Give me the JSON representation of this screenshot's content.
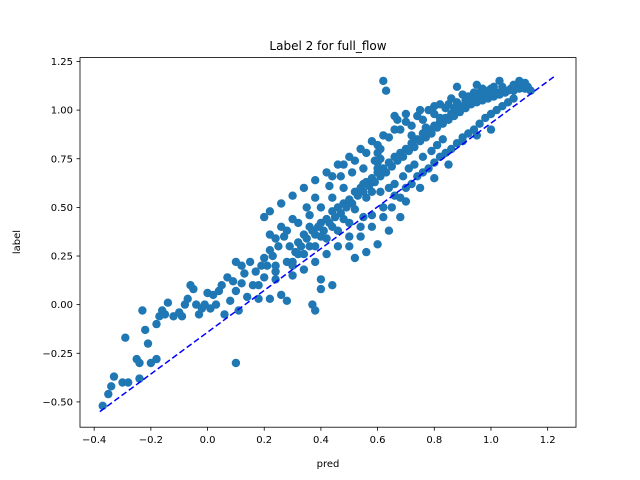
{
  "chart_data": {
    "type": "scatter",
    "title": "Label 2 for full_flow",
    "xlabel": "pred",
    "ylabel": "label",
    "xlim": [
      -0.45,
      1.3
    ],
    "ylim": [
      -0.63,
      1.27
    ],
    "xticks": [
      -0.4,
      -0.2,
      0.0,
      0.2,
      0.4,
      0.6,
      0.8,
      1.0,
      1.2
    ],
    "xtick_labels": [
      "−0.4",
      "−0.2",
      "0.0",
      "0.2",
      "0.4",
      "0.6",
      "0.8",
      "1.0",
      "1.2"
    ],
    "yticks": [
      -0.5,
      -0.25,
      0.0,
      0.25,
      0.5,
      0.75,
      1.0,
      1.25
    ],
    "ytick_labels": [
      "−0.50",
      "−0.25",
      "0.00",
      "0.25",
      "0.50",
      "0.75",
      "1.00",
      "1.25"
    ],
    "grid": false,
    "series": [
      {
        "type": "scatter",
        "color": "#1f77b4",
        "points": [
          [
            -0.37,
            -0.52
          ],
          [
            -0.35,
            -0.46
          ],
          [
            -0.34,
            -0.42
          ],
          [
            -0.33,
            -0.37
          ],
          [
            -0.3,
            -0.4
          ],
          [
            -0.29,
            -0.17
          ],
          [
            -0.28,
            -0.4
          ],
          [
            -0.25,
            -0.28
          ],
          [
            -0.24,
            -0.3
          ],
          [
            -0.24,
            -0.38
          ],
          [
            -0.23,
            -0.03
          ],
          [
            -0.22,
            -0.13
          ],
          [
            -0.21,
            -0.2
          ],
          [
            -0.2,
            -0.3
          ],
          [
            -0.18,
            -0.28
          ],
          [
            -0.18,
            -0.1
          ],
          [
            -0.17,
            -0.06
          ],
          [
            -0.16,
            -0.03
          ],
          [
            -0.15,
            -0.05
          ],
          [
            -0.14,
            0.01
          ],
          [
            -0.12,
            -0.06
          ],
          [
            -0.1,
            -0.04
          ],
          [
            -0.09,
            -0.06
          ],
          [
            -0.08,
            0.0
          ],
          [
            -0.07,
            0.03
          ],
          [
            -0.06,
            0.1
          ],
          [
            -0.05,
            0.08
          ],
          [
            -0.04,
            0.0
          ],
          [
            -0.03,
            -0.05
          ],
          [
            -0.02,
            -0.02
          ],
          [
            -0.01,
            0.0
          ],
          [
            0.0,
            0.06
          ],
          [
            0.01,
            -0.02
          ],
          [
            0.02,
            0.05
          ],
          [
            0.03,
            0.0
          ],
          [
            0.04,
            0.07
          ],
          [
            0.05,
            0.1
          ],
          [
            0.06,
            -0.05
          ],
          [
            0.07,
            0.14
          ],
          [
            0.08,
            0.02
          ],
          [
            0.09,
            0.12
          ],
          [
            0.1,
            0.07
          ],
          [
            0.11,
            -0.03
          ],
          [
            0.12,
            0.11
          ],
          [
            0.13,
            0.16
          ],
          [
            0.14,
            0.04
          ],
          [
            0.1,
            -0.3
          ],
          [
            0.1,
            0.22
          ],
          [
            0.12,
            0.2
          ],
          [
            0.15,
            0.22
          ],
          [
            0.16,
            0.1
          ],
          [
            0.17,
            0.17
          ],
          [
            0.18,
            0.1
          ],
          [
            0.19,
            0.2
          ],
          [
            0.2,
            0.14
          ],
          [
            0.21,
            0.2
          ],
          [
            0.22,
            0.28
          ],
          [
            0.23,
            0.25
          ],
          [
            0.24,
            0.2
          ],
          [
            0.25,
            0.3
          ],
          [
            0.2,
            0.24
          ],
          [
            0.18,
            0.03
          ],
          [
            0.22,
            0.03
          ],
          [
            0.24,
            0.13
          ],
          [
            0.26,
            0.05
          ],
          [
            0.28,
            0.02
          ],
          [
            0.3,
            0.22
          ],
          [
            0.27,
            0.35
          ],
          [
            0.29,
            0.3
          ],
          [
            0.31,
            0.27
          ],
          [
            0.32,
            0.32
          ],
          [
            0.33,
            0.3
          ],
          [
            0.34,
            0.36
          ],
          [
            0.35,
            0.34
          ],
          [
            0.36,
            0.4
          ],
          [
            0.37,
            0.38
          ],
          [
            0.38,
            0.36
          ],
          [
            0.39,
            0.4
          ],
          [
            0.4,
            0.42
          ],
          [
            0.41,
            0.38
          ],
          [
            0.42,
            0.44
          ],
          [
            0.43,
            0.42
          ],
          [
            0.44,
            0.48
          ],
          [
            0.45,
            0.45
          ],
          [
            0.46,
            0.5
          ],
          [
            0.47,
            0.47
          ],
          [
            0.48,
            0.52
          ],
          [
            0.49,
            0.5
          ],
          [
            0.5,
            0.54
          ],
          [
            0.51,
            0.52
          ],
          [
            0.52,
            0.58
          ],
          [
            0.53,
            0.56
          ],
          [
            0.54,
            0.6
          ],
          [
            0.55,
            0.58
          ],
          [
            0.56,
            0.63
          ],
          [
            0.57,
            0.61
          ],
          [
            0.58,
            0.65
          ],
          [
            0.59,
            0.63
          ],
          [
            0.6,
            0.68
          ],
          [
            0.61,
            0.66
          ],
          [
            0.62,
            0.7
          ],
          [
            0.63,
            0.68
          ],
          [
            0.64,
            0.73
          ],
          [
            0.65,
            0.71
          ],
          [
            0.66,
            0.76
          ],
          [
            0.67,
            0.74
          ],
          [
            0.68,
            0.78
          ],
          [
            0.69,
            0.76
          ],
          [
            0.7,
            0.8
          ],
          [
            0.71,
            0.79
          ],
          [
            0.72,
            0.83
          ],
          [
            0.73,
            0.81
          ],
          [
            0.74,
            0.85
          ],
          [
            0.75,
            0.84
          ],
          [
            0.76,
            0.88
          ],
          [
            0.77,
            0.86
          ],
          [
            0.78,
            0.9
          ],
          [
            0.79,
            0.88
          ],
          [
            0.8,
            0.92
          ],
          [
            0.81,
            0.91
          ],
          [
            0.82,
            0.94
          ],
          [
            0.83,
            0.93
          ],
          [
            0.84,
            0.96
          ],
          [
            0.85,
            0.95
          ],
          [
            0.86,
            0.98
          ],
          [
            0.87,
            0.97
          ],
          [
            0.88,
            1.0
          ],
          [
            0.89,
            0.99
          ],
          [
            0.9,
            1.02
          ],
          [
            0.91,
            1.01
          ],
          [
            0.92,
            1.04
          ],
          [
            0.93,
            1.03
          ],
          [
            0.94,
            1.05
          ],
          [
            0.95,
            1.04
          ],
          [
            0.96,
            1.06
          ],
          [
            0.97,
            1.05
          ],
          [
            0.98,
            1.07
          ],
          [
            0.99,
            1.06
          ],
          [
            1.0,
            1.08
          ],
          [
            1.01,
            1.07
          ],
          [
            1.02,
            1.09
          ],
          [
            1.03,
            1.08
          ],
          [
            1.04,
            1.1
          ],
          [
            1.05,
            1.09
          ],
          [
            1.06,
            1.1
          ],
          [
            1.07,
            1.11
          ],
          [
            1.08,
            1.1
          ],
          [
            1.09,
            1.12
          ],
          [
            1.1,
            1.11
          ],
          [
            1.11,
            1.12
          ],
          [
            1.12,
            1.11
          ],
          [
            1.13,
            1.12
          ],
          [
            1.14,
            1.1
          ],
          [
            1.01,
            1.12
          ],
          [
            0.97,
            1.11
          ],
          [
            0.94,
            1.09
          ],
          [
            0.9,
            1.08
          ],
          [
            0.86,
            1.06
          ],
          [
            0.82,
            1.03
          ],
          [
            0.78,
            1.0
          ],
          [
            0.74,
            0.97
          ],
          [
            0.7,
            0.94
          ],
          [
            0.66,
            0.9
          ],
          [
            0.62,
            0.87
          ],
          [
            0.58,
            0.84
          ],
          [
            0.54,
            0.8
          ],
          [
            0.5,
            0.76
          ],
          [
            0.46,
            0.72
          ],
          [
            0.42,
            0.68
          ],
          [
            0.38,
            0.64
          ],
          [
            0.34,
            0.6
          ],
          [
            0.3,
            0.56
          ],
          [
            0.26,
            0.52
          ],
          [
            0.22,
            0.48
          ],
          [
            0.2,
            0.45
          ],
          [
            0.44,
            0.66
          ],
          [
            0.48,
            0.72
          ],
          [
            0.52,
            0.74
          ],
          [
            0.56,
            0.78
          ],
          [
            0.6,
            0.82
          ],
          [
            0.64,
            0.86
          ],
          [
            0.68,
            0.9
          ],
          [
            0.72,
            0.92
          ],
          [
            0.76,
            0.95
          ],
          [
            0.8,
            0.98
          ],
          [
            0.84,
            1.01
          ],
          [
            0.88,
            1.04
          ],
          [
            0.92,
            1.07
          ],
          [
            0.96,
            1.09
          ],
          [
            1.0,
            1.11
          ],
          [
            0.5,
            0.35
          ],
          [
            0.54,
            0.4
          ],
          [
            0.58,
            0.46
          ],
          [
            0.62,
            0.5
          ],
          [
            0.66,
            0.56
          ],
          [
            0.7,
            0.6
          ],
          [
            0.74,
            0.66
          ],
          [
            0.78,
            0.7
          ],
          [
            0.82,
            0.76
          ],
          [
            0.86,
            0.8
          ],
          [
            0.9,
            0.86
          ],
          [
            0.94,
            0.9
          ],
          [
            0.98,
            0.96
          ],
          [
            1.02,
            1.0
          ],
          [
            1.06,
            1.04
          ],
          [
            0.46,
            0.3
          ],
          [
            0.42,
            0.26
          ],
          [
            0.38,
            0.22
          ],
          [
            0.34,
            0.18
          ],
          [
            0.3,
            0.15
          ],
          [
            0.4,
            0.08
          ],
          [
            0.37,
            0.0
          ],
          [
            0.38,
            -0.03
          ],
          [
            0.4,
            0.13
          ],
          [
            0.44,
            0.1
          ],
          [
            0.52,
            0.24
          ],
          [
            0.56,
            0.27
          ],
          [
            0.6,
            0.31
          ],
          [
            0.64,
            0.38
          ],
          [
            0.68,
            0.45
          ],
          [
            0.61,
            0.58
          ],
          [
            0.64,
            0.6
          ],
          [
            0.66,
            0.62
          ],
          [
            0.69,
            0.66
          ],
          [
            0.71,
            0.7
          ],
          [
            0.73,
            0.72
          ],
          [
            0.76,
            0.76
          ],
          [
            0.79,
            0.79
          ],
          [
            0.81,
            0.82
          ],
          [
            0.83,
            0.85
          ],
          [
            0.6,
            0.78
          ],
          [
            0.61,
            0.8
          ],
          [
            0.6,
            0.73
          ],
          [
            0.6,
            0.7
          ],
          [
            0.61,
            0.75
          ],
          [
            0.67,
            0.95
          ],
          [
            0.66,
            0.97
          ],
          [
            0.7,
            0.98
          ],
          [
            0.75,
            1.0
          ],
          [
            0.8,
            1.02
          ],
          [
            0.85,
            1.03
          ],
          [
            0.88,
            1.12
          ],
          [
            0.95,
            1.13
          ],
          [
            1.03,
            1.15
          ],
          [
            1.1,
            1.15
          ],
          [
            0.63,
            1.1
          ],
          [
            0.62,
            1.15
          ],
          [
            0.55,
            0.62
          ],
          [
            0.48,
            0.6
          ],
          [
            0.44,
            0.55
          ],
          [
            0.4,
            0.5
          ],
          [
            0.36,
            0.46
          ],
          [
            0.32,
            0.42
          ],
          [
            0.28,
            0.38
          ],
          [
            0.24,
            0.34
          ],
          [
            0.56,
            0.55
          ],
          [
            0.58,
            0.58
          ],
          [
            0.52,
            0.49
          ],
          [
            0.48,
            0.44
          ],
          [
            0.44,
            0.4
          ],
          [
            0.4,
            0.35
          ],
          [
            0.36,
            0.3
          ],
          [
            0.32,
            0.26
          ],
          [
            0.28,
            0.22
          ],
          [
            0.24,
            0.17
          ],
          [
            0.3,
            0.44
          ],
          [
            0.26,
            0.4
          ],
          [
            0.22,
            0.36
          ],
          [
            0.35,
            0.5
          ],
          [
            0.38,
            0.55
          ],
          [
            0.43,
            0.61
          ],
          [
            0.47,
            0.66
          ],
          [
            0.51,
            0.68
          ],
          [
            0.55,
            0.7
          ],
          [
            0.59,
            0.74
          ],
          [
            0.72,
            0.87
          ],
          [
            0.77,
            0.91
          ],
          [
            0.82,
            0.96
          ],
          [
            0.87,
            1.01
          ],
          [
            0.91,
            1.05
          ],
          [
            0.95,
            1.08
          ],
          [
            0.99,
            1.1
          ],
          [
            1.04,
            1.12
          ],
          [
            1.08,
            1.13
          ],
          [
            1.12,
            1.14
          ],
          [
            0.65,
            0.5
          ],
          [
            0.68,
            0.55
          ],
          [
            0.72,
            0.62
          ],
          [
            0.76,
            0.68
          ],
          [
            0.8,
            0.73
          ],
          [
            0.84,
            0.78
          ],
          [
            0.88,
            0.83
          ],
          [
            0.92,
            0.88
          ],
          [
            0.96,
            0.93
          ],
          [
            1.0,
            0.98
          ],
          [
            1.04,
            1.02
          ],
          [
            1.08,
            1.06
          ],
          [
            1.0,
            0.9
          ],
          [
            0.95,
            0.87
          ],
          [
            0.9,
            0.84
          ],
          [
            0.85,
            0.72
          ],
          [
            0.8,
            0.65
          ],
          [
            0.75,
            0.6
          ],
          [
            0.7,
            0.53
          ],
          [
            0.62,
            0.45
          ],
          [
            0.58,
            0.4
          ],
          [
            0.54,
            0.35
          ],
          [
            0.5,
            0.3
          ],
          [
            0.55,
            0.45
          ],
          [
            0.5,
            0.42
          ],
          [
            0.46,
            0.38
          ],
          [
            0.42,
            0.34
          ],
          [
            0.38,
            0.3
          ],
          [
            0.34,
            0.26
          ],
          [
            0.3,
            0.2
          ]
        ]
      }
    ],
    "reference_line": {
      "style": "dashed",
      "color": "#0000ff",
      "from": [
        -0.38,
        -0.55
      ],
      "to": [
        1.23,
        1.18
      ]
    }
  }
}
